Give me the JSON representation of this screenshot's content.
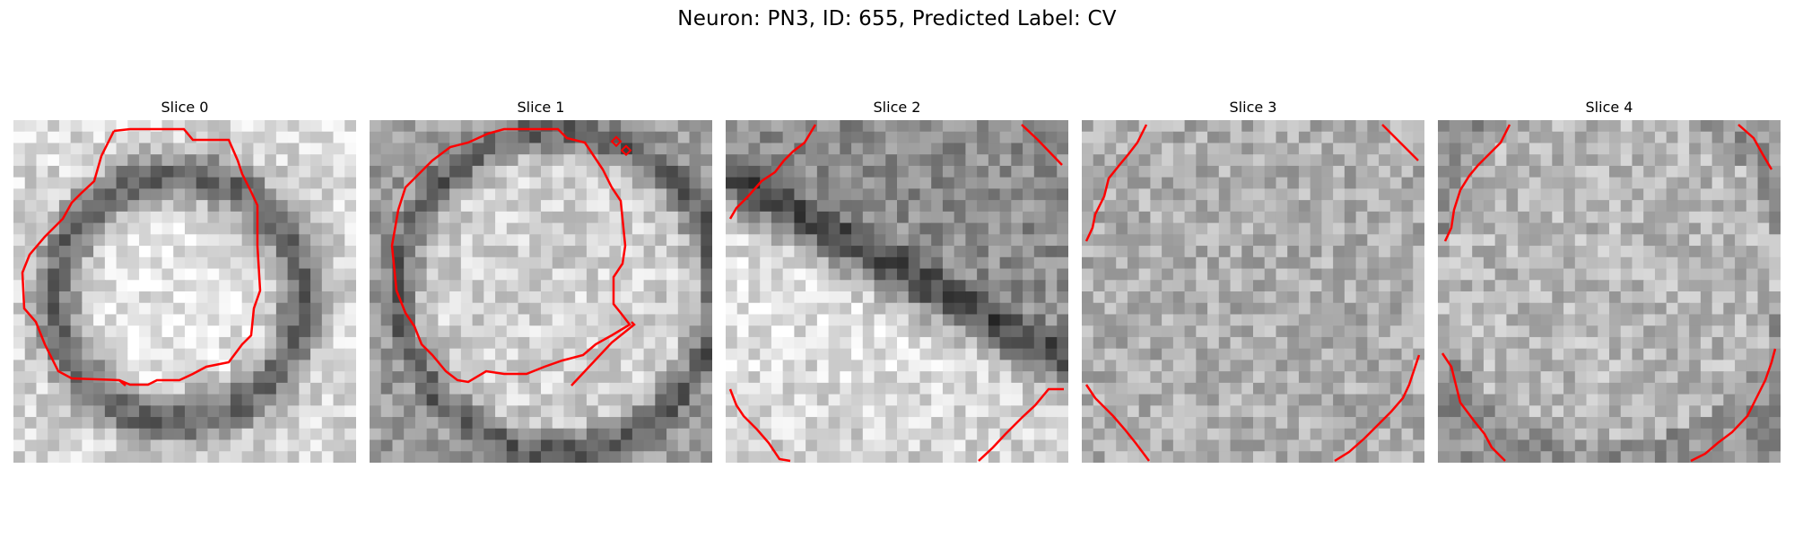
{
  "figure": {
    "title": "Neuron: PN3, ID: 655, Predicted Label: CV"
  },
  "slices": [
    {
      "title": "Slice 0"
    },
    {
      "title": "Slice 1"
    },
    {
      "title": "Slice 2"
    },
    {
      "title": "Slice 3"
    },
    {
      "title": "Slice 4"
    }
  ],
  "contour_color": "#ff0000",
  "colormap": "grayscale"
}
